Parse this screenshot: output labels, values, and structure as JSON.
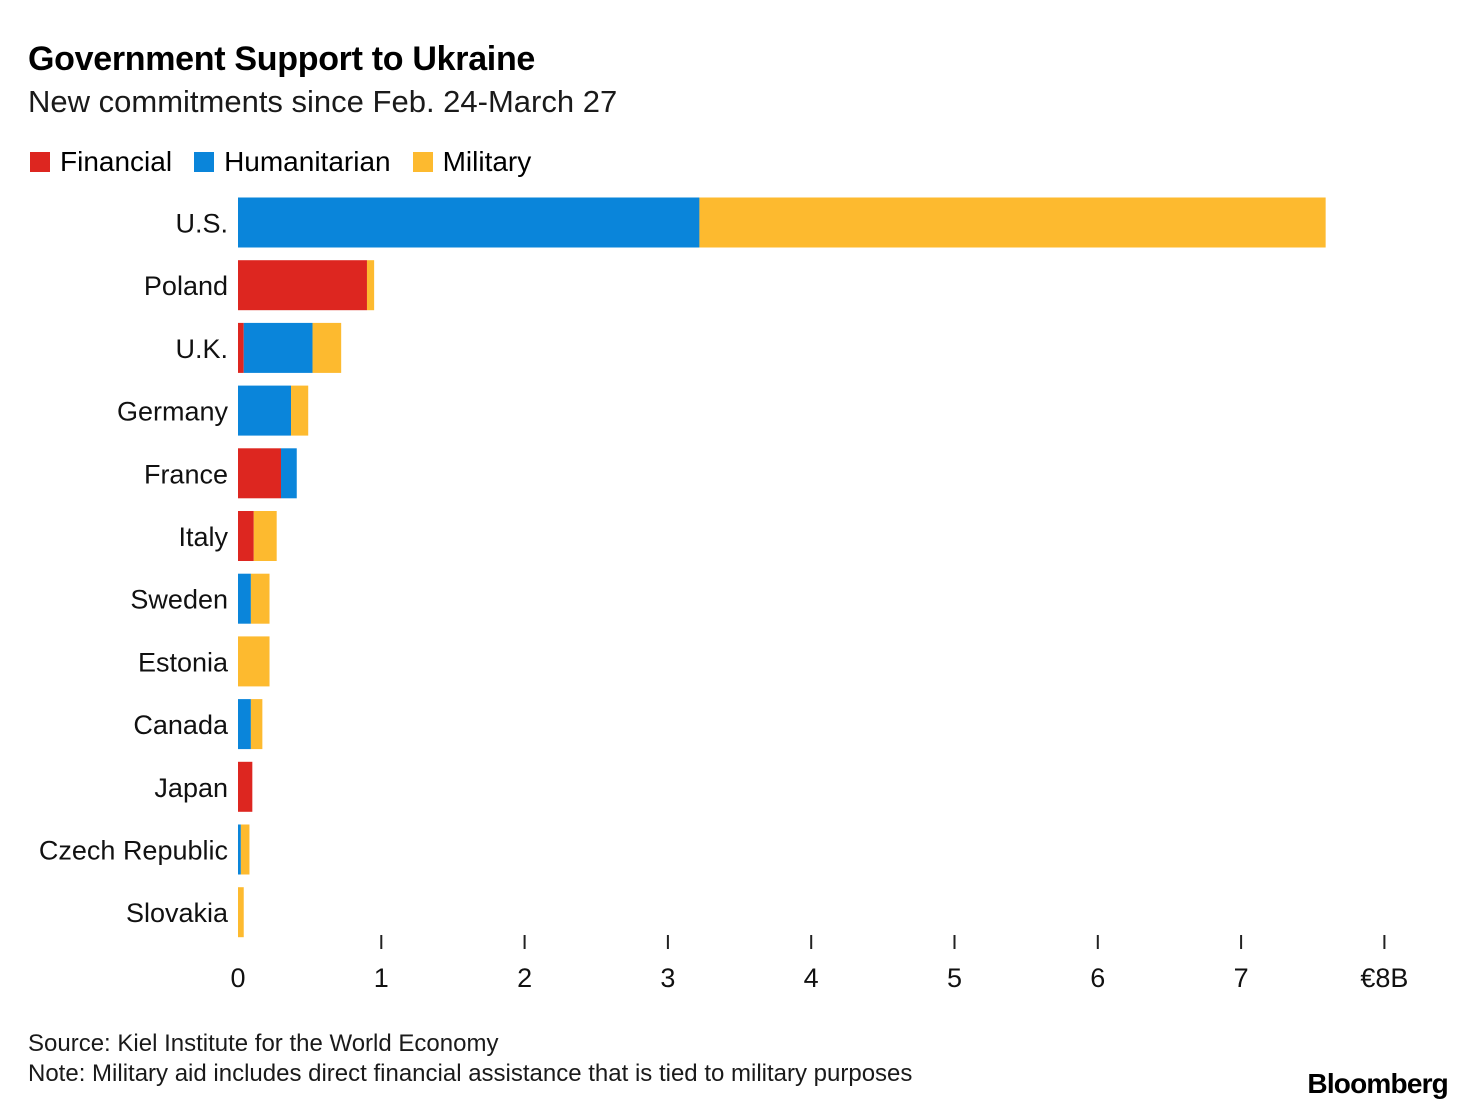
{
  "title": "Government Support to Ukraine",
  "subtitle": "New commitments since Feb. 24-March 27",
  "legend": [
    {
      "label": "Financial",
      "color": "#dd2620"
    },
    {
      "label": "Humanitarian",
      "color": "#0a85da"
    },
    {
      "label": "Military",
      "color": "#fdba2f"
    }
  ],
  "source": "Source: Kiel Institute for the World Economy",
  "note": "Note: Military aid includes direct financial assistance that is tied to military purposes",
  "brand": "Bloomberg",
  "chart_data": {
    "type": "bar",
    "orientation": "horizontal",
    "stacked": true,
    "title": "Government Support to Ukraine",
    "subtitle": "New commitments since Feb. 24-March 27",
    "xlabel": "",
    "ylabel": "",
    "unit": "€B",
    "xlim": [
      0,
      8
    ],
    "ticks": [
      0,
      1,
      2,
      3,
      4,
      5,
      6,
      7,
      8
    ],
    "tick_labels": [
      "0",
      "1",
      "2",
      "3",
      "4",
      "5",
      "6",
      "7",
      "€8B"
    ],
    "legend_position": "top-left",
    "grid": false,
    "categories": [
      "U.S.",
      "Poland",
      "U.K.",
      "Germany",
      "France",
      "Italy",
      "Sweden",
      "Estonia",
      "Canada",
      "Japan",
      "Czech Republic",
      "Slovakia"
    ],
    "series": [
      {
        "name": "Financial",
        "color": "#dd2620",
        "values": [
          0,
          0.9,
          0.04,
          0,
          0.3,
          0.11,
          0,
          0,
          0,
          0.1,
          0,
          0
        ]
      },
      {
        "name": "Humanitarian",
        "color": "#0a85da",
        "values": [
          3.22,
          0,
          0.48,
          0.37,
          0.11,
          0,
          0.09,
          0,
          0.09,
          0,
          0.02,
          0
        ]
      },
      {
        "name": "Military",
        "color": "#fdba2f",
        "values": [
          4.37,
          0.05,
          0.2,
          0.12,
          0,
          0.16,
          0.13,
          0.22,
          0.08,
          0,
          0.06,
          0.04
        ]
      }
    ]
  }
}
